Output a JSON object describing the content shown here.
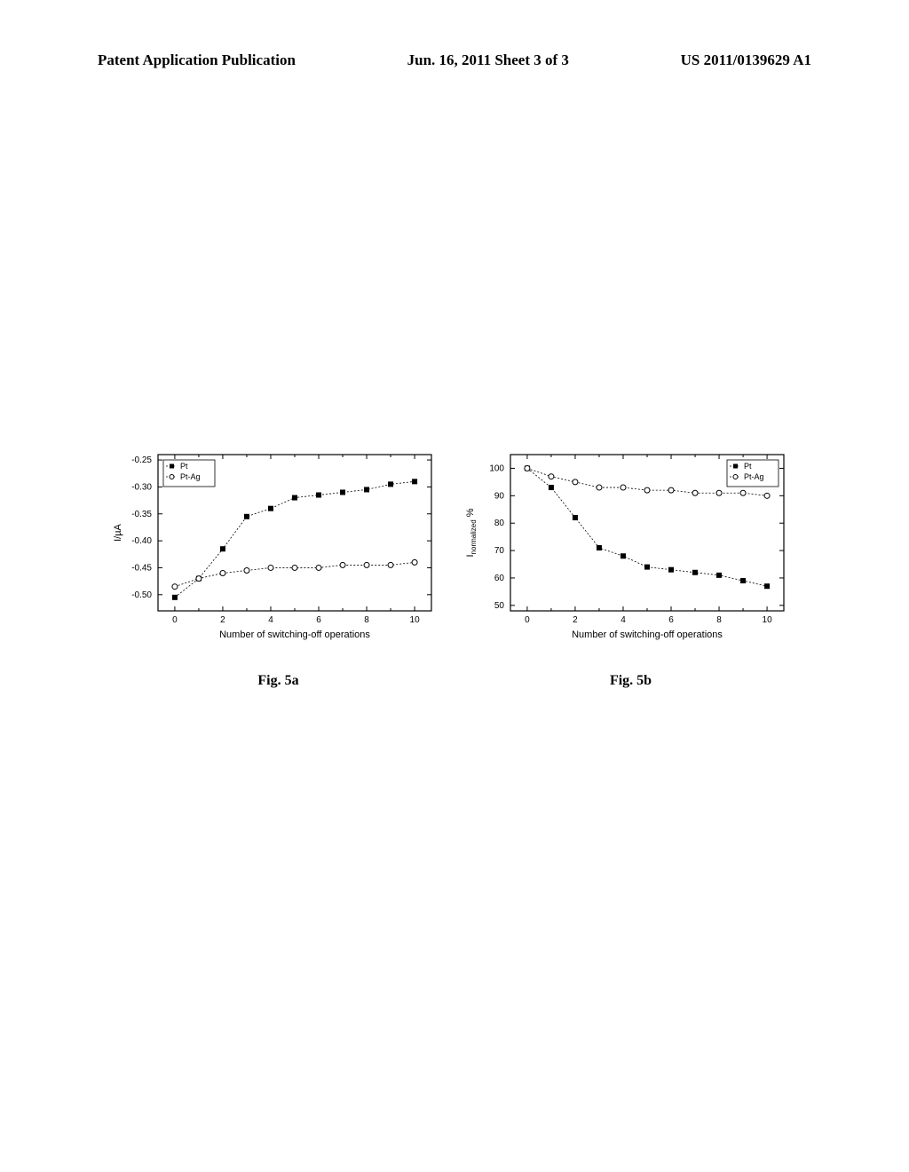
{
  "header": {
    "left": "Patent Application Publication",
    "center": "Jun. 16, 2011  Sheet 3 of 3",
    "right": "US 2011/0139629 A1"
  },
  "chart_a": {
    "type": "scatter-line",
    "caption": "Fig. 5a",
    "x_label": "Number of switching-off operations",
    "y_label": "I/µA",
    "x_ticks": [
      0,
      2,
      4,
      6,
      8,
      10
    ],
    "y_ticks": [
      -0.5,
      -0.45,
      -0.4,
      -0.35,
      -0.3,
      -0.25
    ],
    "xlim": [
      -0.7,
      10.7
    ],
    "ylim": [
      -0.53,
      -0.24
    ],
    "legend": {
      "position": "upper-left",
      "items": [
        "Pt",
        "Pt-Ag"
      ]
    },
    "series": [
      {
        "name": "Pt",
        "marker": "square",
        "color": "#000000",
        "x": [
          0,
          1,
          2,
          3,
          4,
          5,
          6,
          7,
          8,
          9,
          10
        ],
        "y": [
          -0.505,
          -0.47,
          -0.415,
          -0.355,
          -0.34,
          -0.32,
          -0.315,
          -0.31,
          -0.305,
          -0.295,
          -0.29
        ]
      },
      {
        "name": "Pt-Ag",
        "marker": "circle",
        "color": "#000000",
        "x": [
          0,
          1,
          2,
          3,
          4,
          5,
          6,
          7,
          8,
          9,
          10
        ],
        "y": [
          -0.485,
          -0.47,
          -0.46,
          -0.455,
          -0.45,
          -0.45,
          -0.45,
          -0.445,
          -0.445,
          -0.445,
          -0.44
        ]
      }
    ],
    "line_dash": "2 2",
    "marker_size": 3,
    "background_color": "#ffffff",
    "axis_width": 1.2
  },
  "chart_b": {
    "type": "scatter-line",
    "caption": "Fig. 5b",
    "x_label": "Number of switching-off operations",
    "y_label": "Inormalized %",
    "x_ticks": [
      0,
      2,
      4,
      6,
      8,
      10
    ],
    "y_ticks": [
      50,
      60,
      70,
      80,
      90,
      100
    ],
    "xlim": [
      -0.7,
      10.7
    ],
    "ylim": [
      48,
      105
    ],
    "legend": {
      "position": "upper-right",
      "items": [
        "Pt",
        "Pt-Ag"
      ]
    },
    "series": [
      {
        "name": "Pt",
        "marker": "square",
        "color": "#000000",
        "x": [
          0,
          1,
          2,
          3,
          4,
          5,
          6,
          7,
          8,
          9,
          10
        ],
        "y": [
          100,
          93,
          82,
          71,
          68,
          64,
          63,
          62,
          61,
          59,
          57
        ]
      },
      {
        "name": "Pt-Ag",
        "marker": "circle",
        "color": "#000000",
        "x": [
          0,
          1,
          2,
          3,
          4,
          5,
          6,
          7,
          8,
          9,
          10
        ],
        "y": [
          100,
          97,
          95,
          93,
          93,
          92,
          92,
          91,
          91,
          91,
          90
        ]
      }
    ],
    "line_dash": "2 2",
    "marker_size": 3,
    "background_color": "#ffffff",
    "axis_width": 1.2
  }
}
